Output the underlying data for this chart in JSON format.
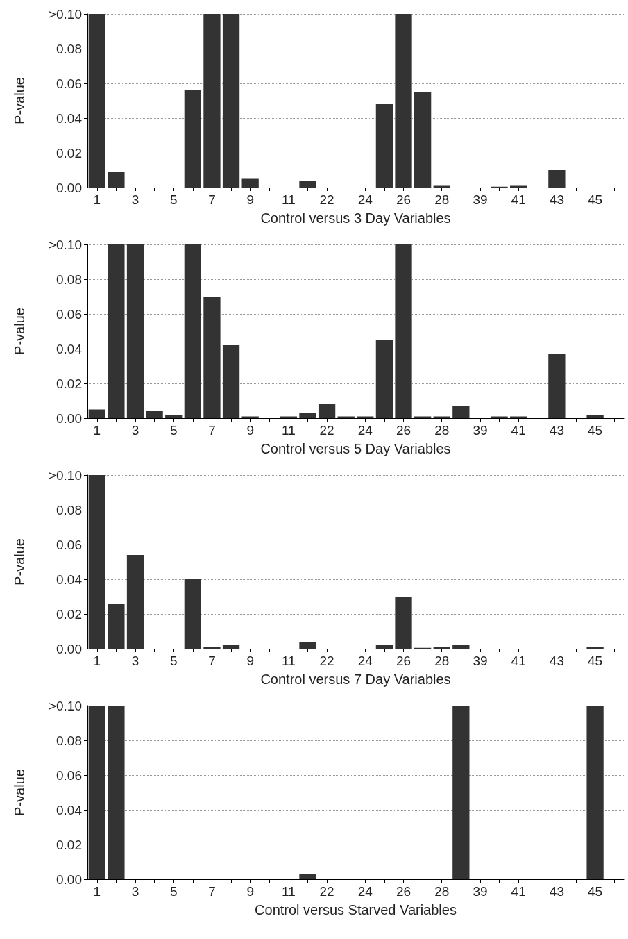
{
  "chart_data": [
    {
      "type": "bar",
      "xlabel": "Control versus 3 Day Variables",
      "ylabel": "P-value",
      "categories": [
        "1",
        null,
        "3",
        null,
        "5",
        null,
        "7",
        null,
        "9",
        null,
        "11",
        null,
        "22",
        null,
        "24",
        null,
        "26",
        null,
        "28",
        null,
        "39",
        null,
        "41",
        null,
        "43",
        null,
        "45",
        null
      ],
      "color": "#333333",
      "values": [
        0.1,
        0.009,
        0,
        0,
        0,
        0.056,
        0.1,
        0.1,
        0.005,
        0,
        0,
        0.004,
        0,
        0,
        0,
        0.048,
        0.1,
        0.055,
        0.001,
        0,
        0,
        0.0005,
        0.001,
        0,
        0.01,
        0,
        0,
        0
      ],
      "ylim": [
        0,
        0.1
      ],
      "yticks": [
        {
          "value": 0,
          "label": "0.00"
        },
        {
          "value": 0.02,
          "label": "0.02"
        },
        {
          "value": 0.04,
          "label": "0.04"
        },
        {
          "value": 0.06,
          "label": "0.06"
        },
        {
          "value": 0.08,
          "label": "0.08"
        },
        {
          "value": 0.1,
          "label": ">0.10"
        }
      ],
      "grid": "y"
    },
    {
      "type": "bar",
      "xlabel": "Control versus 5 Day Variables",
      "ylabel": "P-value",
      "categories": [
        "1",
        null,
        "3",
        null,
        "5",
        null,
        "7",
        null,
        "9",
        null,
        "11",
        null,
        "22",
        null,
        "24",
        null,
        "26",
        null,
        "28",
        null,
        "39",
        null,
        "41",
        null,
        "43",
        null,
        "45",
        null
      ],
      "color": "#333333",
      "values": [
        0.005,
        0.1,
        0.1,
        0.004,
        0.002,
        0.1,
        0.07,
        0.042,
        0.001,
        0,
        0.001,
        0.003,
        0.008,
        0.001,
        0.001,
        0.045,
        0.1,
        0.001,
        0.001,
        0.007,
        0,
        0.001,
        0.001,
        0,
        0.037,
        0,
        0.002,
        0
      ],
      "ylim": [
        0,
        0.1
      ],
      "yticks": [
        {
          "value": 0,
          "label": "0.00"
        },
        {
          "value": 0.02,
          "label": "0.02"
        },
        {
          "value": 0.04,
          "label": "0.04"
        },
        {
          "value": 0.06,
          "label": "0.06"
        },
        {
          "value": 0.08,
          "label": "0.08"
        },
        {
          "value": 0.1,
          "label": ">0.10"
        }
      ],
      "grid": "y"
    },
    {
      "type": "bar",
      "xlabel": "Control versus 7 Day Variables",
      "ylabel": "P-value",
      "categories": [
        "1",
        null,
        "3",
        null,
        "5",
        null,
        "7",
        null,
        "9",
        null,
        "11",
        null,
        "22",
        null,
        "24",
        null,
        "26",
        null,
        "28",
        null,
        "39",
        null,
        "41",
        null,
        "43",
        null,
        "45",
        null
      ],
      "color": "#333333",
      "values": [
        0.1,
        0.026,
        0.054,
        0,
        0,
        0.04,
        0.001,
        0.002,
        0,
        0,
        0,
        0.004,
        0,
        0,
        0,
        0.002,
        0.03,
        0.0005,
        0.001,
        0.002,
        0,
        0,
        0,
        0,
        0,
        0,
        0.001,
        0
      ],
      "ylim": [
        0,
        0.1
      ],
      "yticks": [
        {
          "value": 0,
          "label": "0.00"
        },
        {
          "value": 0.02,
          "label": "0.02"
        },
        {
          "value": 0.04,
          "label": "0.04"
        },
        {
          "value": 0.06,
          "label": "0.06"
        },
        {
          "value": 0.08,
          "label": "0.08"
        },
        {
          "value": 0.1,
          "label": ">0.10"
        }
      ],
      "grid": "y"
    },
    {
      "type": "bar",
      "xlabel": "Control versus Starved Variables",
      "ylabel": "P-value",
      "categories": [
        "1",
        null,
        "3",
        null,
        "5",
        null,
        "7",
        null,
        "9",
        null,
        "11",
        null,
        "22",
        null,
        "24",
        null,
        "26",
        null,
        "28",
        null,
        "39",
        null,
        "41",
        null,
        "43",
        null,
        "45",
        null
      ],
      "color": "#333333",
      "values": [
        0.1,
        0.1,
        0,
        0,
        0,
        0,
        0,
        0,
        0,
        0,
        0,
        0.003,
        0,
        0,
        0,
        0,
        0,
        0,
        0,
        0.1,
        0,
        0,
        0,
        0,
        0,
        0,
        0.1,
        0
      ],
      "ylim": [
        0,
        0.1
      ],
      "yticks": [
        {
          "value": 0,
          "label": "0.00"
        },
        {
          "value": 0.02,
          "label": "0.02"
        },
        {
          "value": 0.04,
          "label": "0.04"
        },
        {
          "value": 0.06,
          "label": "0.06"
        },
        {
          "value": 0.08,
          "label": "0.08"
        },
        {
          "value": 0.1,
          "label": ">0.10"
        }
      ],
      "grid": "y"
    }
  ]
}
